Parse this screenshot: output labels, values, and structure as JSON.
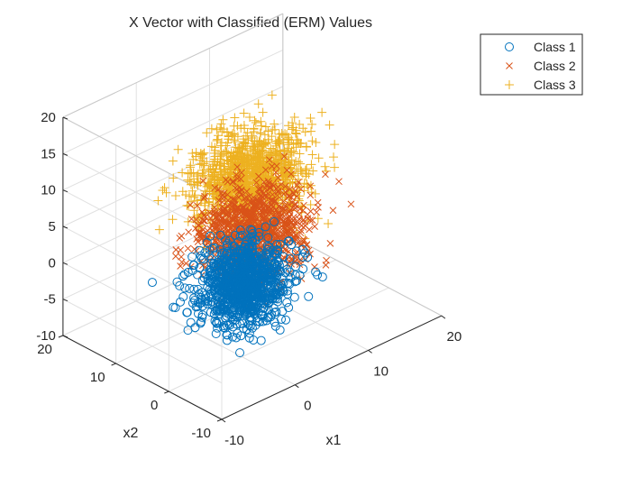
{
  "chart_data": {
    "type": "scatter",
    "title": "X Vector with Classified (ERM) Values",
    "xlabel": "x1",
    "ylabel": "x2",
    "zlabel": "",
    "xlim": [
      -10,
      20
    ],
    "ylim": [
      -10,
      20
    ],
    "zlim": [
      -10,
      20
    ],
    "x_ticks": [
      "-10",
      "0",
      "10",
      "20"
    ],
    "y_ticks": [
      "-10",
      "0",
      "10",
      "20"
    ],
    "z_ticks": [
      "-10",
      "-5",
      "0",
      "5",
      "10",
      "15",
      "20"
    ],
    "grid": true,
    "box": true,
    "view": "3d",
    "legend_position": "top-right, outside",
    "series": [
      {
        "name": "Class 1",
        "marker": "circle",
        "color": "#0072BD",
        "center": [
          0,
          0,
          0
        ],
        "spread": [
          2.5,
          2.5,
          2.5
        ],
        "points_shown": 1000
      },
      {
        "name": "Class 2",
        "marker": "x",
        "color": "#D95319",
        "center": [
          3,
          2,
          5
        ],
        "spread": [
          3,
          3,
          2.8
        ],
        "points_shown": 1000
      },
      {
        "name": "Class 3",
        "marker": "plus",
        "color": "#EDB120",
        "center": [
          4,
          4,
          11
        ],
        "spread": [
          3.2,
          3.2,
          2.8
        ],
        "points_shown": 1200
      }
    ]
  }
}
